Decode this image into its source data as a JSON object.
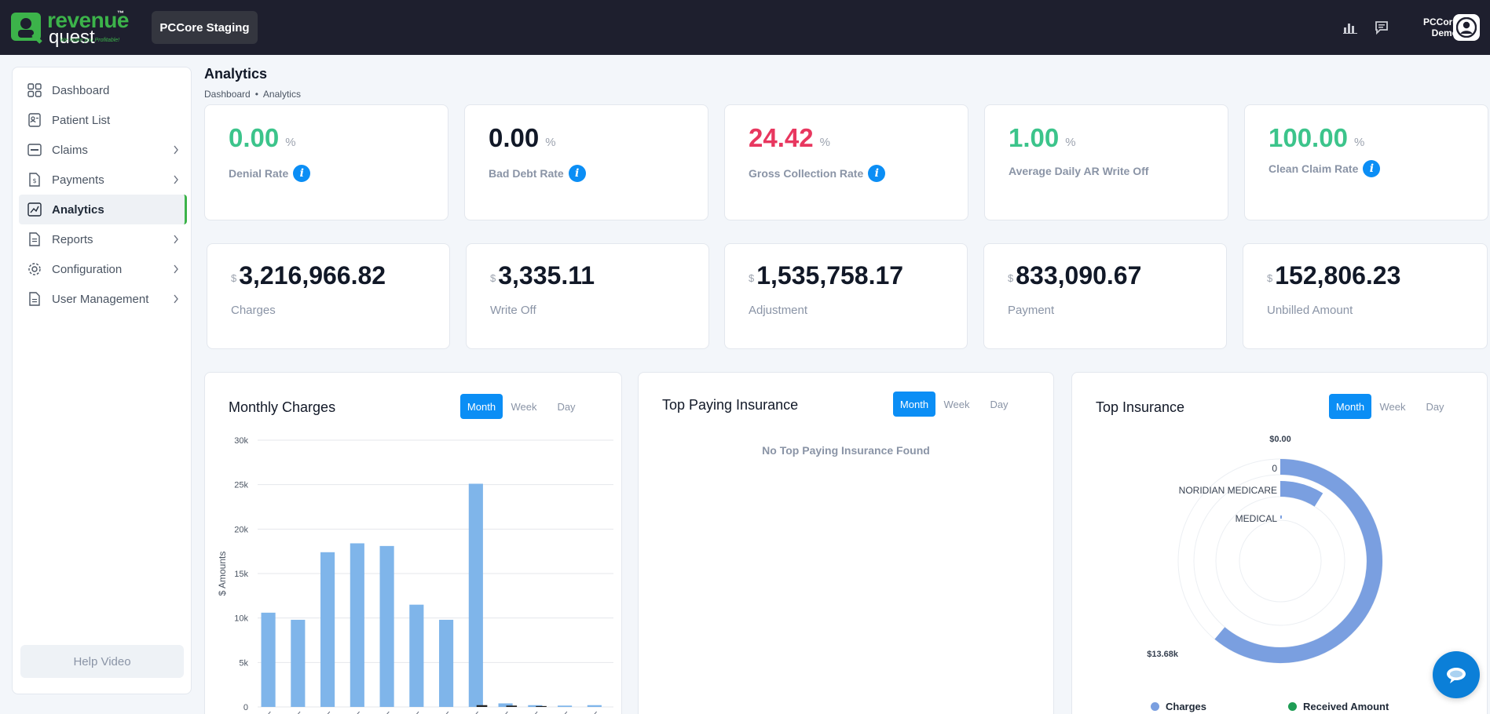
{
  "header": {
    "logo_line1": "revenue",
    "logo_line2": "quest",
    "logo_tm": "™",
    "logo_tagline": "We make you Profitable!",
    "org_button": "PCCore Staging",
    "user_first": "PCCore",
    "user_last": "Demo"
  },
  "sidebar": {
    "items": [
      {
        "label": "Dashboard",
        "icon": "grid-icon"
      },
      {
        "label": "Patient List",
        "icon": "patient-list-icon"
      },
      {
        "label": "Claims",
        "icon": "claim-icon"
      },
      {
        "label": "Payments",
        "icon": "payment-icon"
      },
      {
        "label": "Analytics",
        "icon": "analytics-icon"
      },
      {
        "label": "Reports",
        "icon": "report-icon"
      },
      {
        "label": "Configuration",
        "icon": "gear-icon"
      },
      {
        "label": "User Management",
        "icon": "user-management-icon"
      }
    ],
    "help": "Help Video"
  },
  "page": {
    "title": "Analytics",
    "breadcrumb": [
      "Dashboard",
      "Analytics"
    ],
    "breadcrumb_sep": "•"
  },
  "rates": [
    {
      "value": "0.00",
      "unit": "%",
      "label": "Denial Rate",
      "color": "#3cc48b"
    },
    {
      "value": "0.00",
      "unit": "%",
      "label": "Bad Debt Rate",
      "color": "#111827"
    },
    {
      "value": "24.42",
      "unit": "%",
      "label": "Gross Collection Rate",
      "color": "#e8375f"
    },
    {
      "value": "1.00",
      "unit": "%",
      "label": "Average Daily AR Write Off",
      "color": "#3cc48b"
    },
    {
      "value": "100.00",
      "unit": "%",
      "label": "Clean Claim Rate",
      "color": "#3cc48b"
    }
  ],
  "amounts": [
    {
      "currency": "$",
      "value": "3,216,966.82",
      "label": "Charges"
    },
    {
      "currency": "$",
      "value": "3,335.11",
      "label": "Write Off"
    },
    {
      "currency": "$",
      "value": "1,535,758.17",
      "label": "Adjustment"
    },
    {
      "currency": "$",
      "value": "833,090.67",
      "label": "Payment"
    },
    {
      "currency": "$",
      "value": "152,806.23",
      "label": "Unbilled Amount"
    }
  ],
  "periods": [
    "Month",
    "Week",
    "Day"
  ],
  "info_glyph": "i",
  "panels": {
    "monthly_charges": "Monthly Charges",
    "top_paying": "Top Paying Insurance",
    "top_paying_empty": "No Top Paying Insurance Found",
    "top_insurance": "Top Insurance"
  },
  "colors": {
    "accent": "#0b8ef5",
    "bar": "#7fb5ea",
    "green": "#3cb34a",
    "ring": "#7a9fe0",
    "received": "#1f9d55"
  },
  "chart_data": [
    {
      "type": "bar",
      "title": "Monthly Charges",
      "ylabel": "$ Amounts",
      "ylim": [
        0,
        30000
      ],
      "yticks": [
        "0",
        "5k",
        "10k",
        "15k",
        "20k",
        "25k",
        "30k"
      ],
      "series": [
        {
          "values": [
            10600,
            9800,
            17400,
            18400,
            18100,
            11500,
            9800,
            25100,
            400,
            200,
            150,
            200
          ]
        },
        {
          "values": [
            0,
            0,
            0,
            0,
            0,
            0,
            0,
            200,
            150,
            100,
            0,
            0
          ]
        }
      ],
      "series_colors": [
        "#7fb5ea",
        "#222222"
      ],
      "grid": true
    },
    {
      "type": "radial-bar",
      "title": "Top Insurance",
      "categories": [
        "0",
        "NORIDIAN MEDICARE",
        "MEDICAL"
      ],
      "values": [
        13680,
        2000,
        100
      ],
      "range_labels": [
        "$0.00",
        "$13.68k"
      ],
      "legend": [
        "Charges",
        "Received Amount"
      ],
      "legend_colors": [
        "#7a9fe0",
        "#1f9d55"
      ]
    }
  ]
}
